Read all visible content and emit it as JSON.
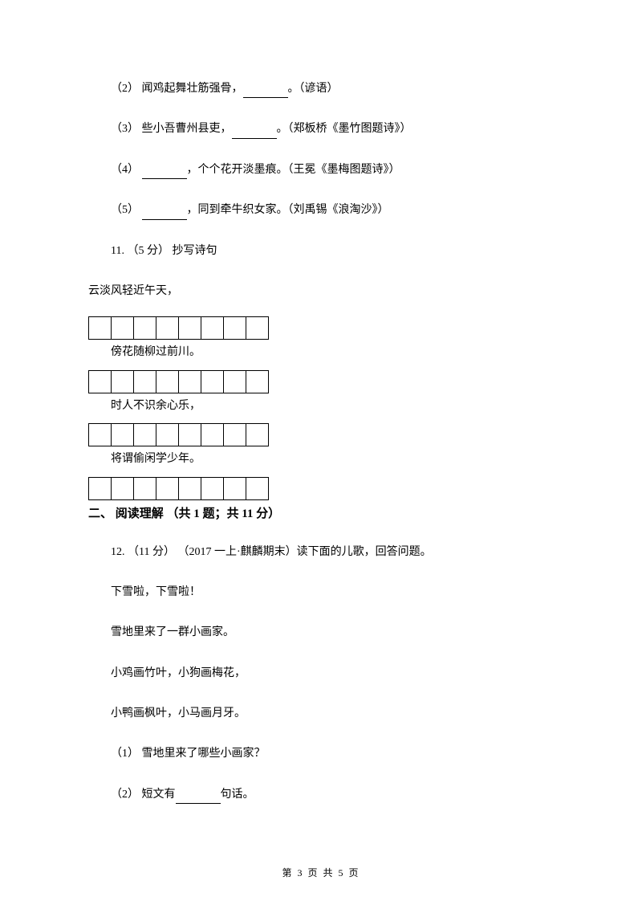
{
  "q2": {
    "num": "（2）",
    "text": " 闻鸡起舞壮筋强骨，",
    "suffix": "。（谚语）"
  },
  "q3": {
    "num": "（3）",
    "text": " 些小吾曹州县吏，",
    "suffix": "。（郑板桥《墨竹图题诗》）"
  },
  "q4": {
    "num": "（4）",
    "text": " ",
    "suffix": "，个个花开淡墨痕。（王冕《墨梅图题诗》）"
  },
  "q5": {
    "num": "（5）",
    "text": " ",
    "suffix": "，同到牵牛织女家。（刘禹锡《浪淘沙》）"
  },
  "q11": {
    "label": "11. （5 分） 抄写诗句",
    "line1": "云淡风轻近午天，",
    "line2": "傍花随柳过前川。",
    "line3": "时人不识余心乐，",
    "line4": "将谓偷闲学少年。"
  },
  "section2": {
    "header": "二、 阅读理解 （共 1 题；共 11 分）"
  },
  "q12": {
    "label": "12. （11 分） （2017 一上·麒麟期末）读下面的儿歌，回答问题。",
    "p1": "下雪啦，下雪啦！",
    "p2": "雪地里来了一群小画家。",
    "p3": "小鸡画竹叶，小狗画梅花，",
    "p4": "小鸭画枫叶，小马画月牙。",
    "sub1": "（1） 雪地里来了哪些小画家？",
    "sub2a": "（2） 短文有",
    "sub2b": "句话。"
  },
  "footer": "第 3 页  共 5 页",
  "boxes": {
    "count": 8
  }
}
